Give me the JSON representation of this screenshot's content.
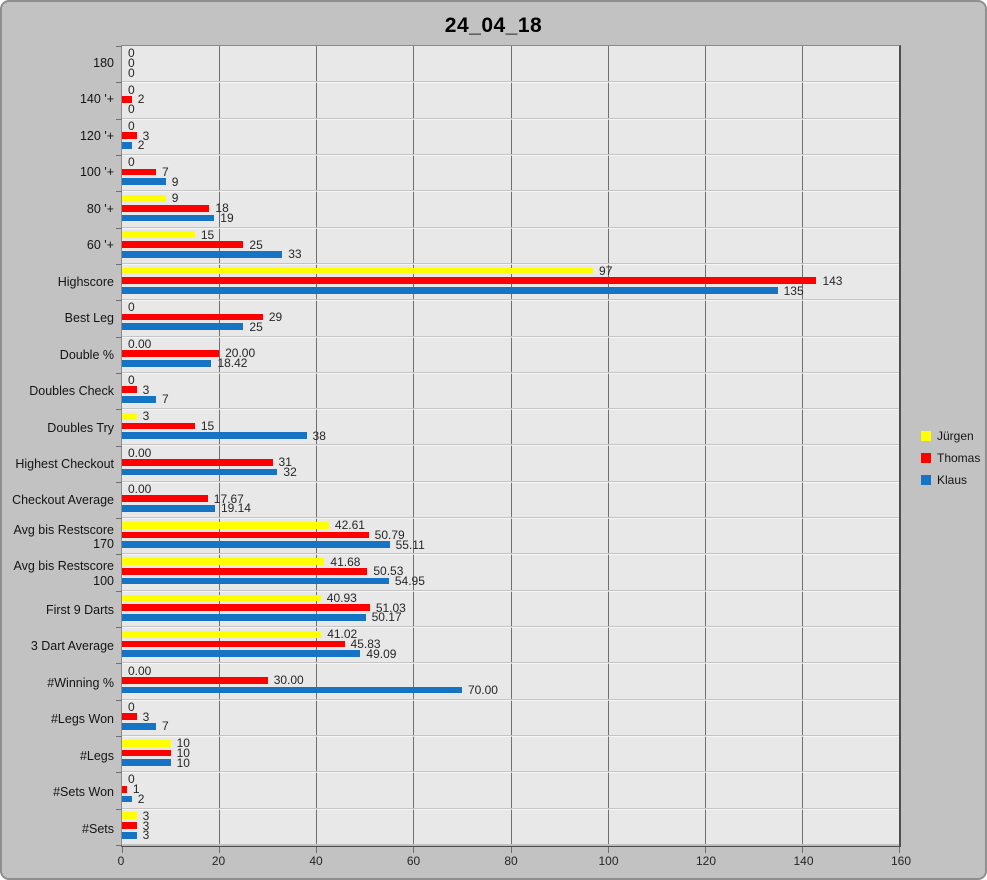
{
  "title": "24_04_18",
  "chart_data": {
    "type": "bar",
    "orientation": "horizontal",
    "title": "24_04_18",
    "xlabel": "",
    "ylabel": "",
    "xlim": [
      0,
      160
    ],
    "x_ticks": [
      0,
      20,
      40,
      60,
      80,
      100,
      120,
      140,
      160
    ],
    "grid": "vertical",
    "legend_position": "right",
    "plot_background": "#e8e8e8",
    "window_background": "#c2c2c2",
    "categories": [
      "180",
      "140 '+",
      "120 '+",
      "100 '+",
      "80 '+",
      "60 '+",
      "Highscore",
      "Best Leg",
      "Double %",
      "Doubles Check",
      "Doubles Try",
      "Highest Checkout",
      "Checkout Average",
      "Avg bis Restscore 170",
      "Avg bis Restscore 100",
      "First 9 Darts",
      "3 Dart Average",
      "#Winning %",
      "#Legs Won",
      "#Legs",
      "#Sets Won",
      "#Sets"
    ],
    "series": [
      {
        "name": "Jürgen",
        "color": "#ffff00",
        "values": [
          0,
          0,
          0,
          0,
          9,
          15,
          97,
          0,
          0,
          0,
          3,
          0,
          0,
          42.61,
          41.68,
          40.93,
          41.02,
          0,
          0,
          10,
          0,
          3
        ],
        "labels": [
          "0",
          "0",
          "0",
          "0",
          "9",
          "15",
          "97",
          "0",
          "0.00",
          "0",
          "3",
          "0.00",
          "0.00",
          "42.61",
          "41.68",
          "40.93",
          "41.02",
          "0.00",
          "0",
          "10",
          "0",
          "3"
        ]
      },
      {
        "name": "Thomas",
        "color": "#fe0000",
        "values": [
          0,
          2,
          3,
          7,
          18,
          25,
          143,
          29,
          20,
          3,
          15,
          31,
          17.67,
          50.79,
          50.53,
          51.03,
          45.83,
          30,
          3,
          10,
          1,
          3
        ],
        "labels": [
          "0",
          "2",
          "3",
          "7",
          "18",
          "25",
          "143",
          "29",
          "20.00",
          "3",
          "15",
          "31",
          "17.67",
          "50.79",
          "50.53",
          "51.03",
          "45.83",
          "30.00",
          "3",
          "10",
          "1",
          "3"
        ]
      },
      {
        "name": "Klaus",
        "color": "#1774c4",
        "values": [
          0,
          0,
          2,
          9,
          19,
          33,
          135,
          25,
          18.42,
          7,
          38,
          32,
          19.14,
          55.11,
          54.95,
          50.17,
          49.09,
          70,
          7,
          10,
          2,
          3
        ],
        "labels": [
          "0",
          "0",
          "2",
          "9",
          "19",
          "33",
          "135",
          "25",
          "18.42",
          "7",
          "38",
          "32",
          "19.14",
          "55.11",
          "54.95",
          "50.17",
          "49.09",
          "70.00",
          "7",
          "10",
          "2",
          "3"
        ]
      }
    ]
  }
}
